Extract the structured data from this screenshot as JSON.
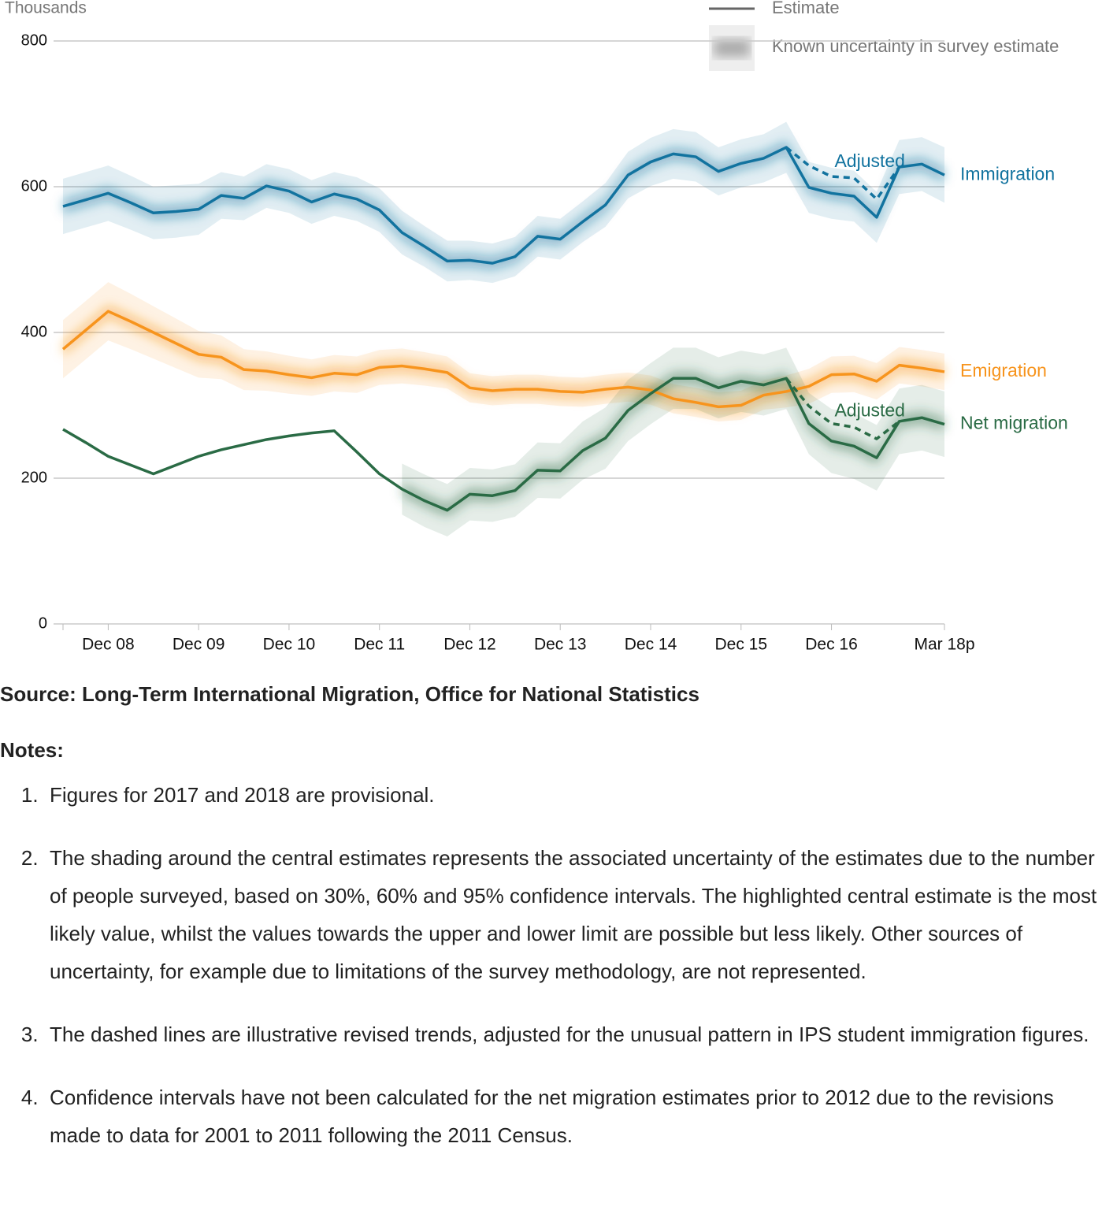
{
  "chart_data": {
    "type": "line",
    "y_label": "Thousands",
    "legend": {
      "line": "Estimate",
      "band": "Known uncertainty in survey estimate"
    },
    "categories": [
      null,
      null,
      "Dec 08",
      null,
      null,
      null,
      "Dec 09",
      null,
      null,
      null,
      "Dec 10",
      null,
      null,
      null,
      "Dec 11",
      null,
      null,
      null,
      "Dec 12",
      null,
      null,
      null,
      "Dec 13",
      null,
      null,
      null,
      "Dec 14",
      null,
      null,
      null,
      "Dec 15",
      null,
      null,
      null,
      "Dec 16",
      null,
      null,
      null,
      null,
      "Mar 18p"
    ],
    "ylim": [
      0,
      800
    ],
    "yticks": [
      0,
      200,
      400,
      600,
      800
    ],
    "grid": true,
    "series": [
      {
        "name": "Immigration",
        "color": "#12739f",
        "values": [
          573,
          582,
          591,
          578,
          564,
          566,
          569,
          588,
          584,
          601,
          594,
          579,
          590,
          583,
          568,
          537,
          518,
          498,
          499,
          495,
          504,
          532,
          528,
          552,
          575,
          616,
          634,
          645,
          641,
          621,
          632,
          639,
          654,
          599,
          591,
          587,
          558,
          627,
          631,
          616
        ],
        "uncertainty": [
          38,
          38,
          38,
          37,
          36,
          36,
          35,
          32,
          30,
          30,
          30,
          30,
          30,
          30,
          30,
          30,
          28,
          28,
          27,
          27,
          27,
          28,
          28,
          28,
          30,
          32,
          33,
          34,
          34,
          33,
          33,
          33,
          35,
          35,
          35,
          35,
          35,
          37,
          37,
          38
        ]
      },
      {
        "name": "Adjusted",
        "color": "#12739f",
        "dashed": true,
        "values": [
          null,
          null,
          null,
          null,
          null,
          null,
          null,
          null,
          null,
          null,
          null,
          null,
          null,
          null,
          null,
          null,
          null,
          null,
          null,
          null,
          null,
          null,
          null,
          null,
          null,
          null,
          null,
          null,
          null,
          null,
          null,
          null,
          654,
          629,
          614,
          612,
          583,
          627,
          null,
          null
        ]
      },
      {
        "name": "Emigration",
        "color": "#f7941d",
        "values": [
          377,
          403,
          429,
          415,
          400,
          385,
          370,
          366,
          349,
          347,
          342,
          338,
          344,
          342,
          352,
          354,
          350,
          345,
          324,
          320,
          322,
          322,
          319,
          318,
          322,
          325,
          321,
          309,
          304,
          298,
          300,
          314,
          319,
          326,
          342,
          343,
          333,
          355,
          351,
          346
        ],
        "uncertainty": [
          40,
          40,
          40,
          38,
          36,
          34,
          32,
          30,
          28,
          27,
          26,
          25,
          25,
          25,
          24,
          24,
          23,
          22,
          20,
          20,
          20,
          20,
          20,
          20,
          20,
          20,
          20,
          20,
          20,
          20,
          20,
          20,
          22,
          24,
          25,
          25,
          25,
          25,
          25,
          25
        ]
      },
      {
        "name": "Net migration",
        "color": "#2a6b45",
        "values": [
          267,
          249,
          230,
          218,
          206,
          218,
          230,
          239,
          246,
          253,
          258,
          262,
          265,
          236,
          206,
          185,
          169,
          156,
          178,
          176,
          183,
          211,
          210,
          238,
          255,
          293,
          316,
          337,
          337,
          324,
          333,
          328,
          337,
          275,
          251,
          244,
          228,
          278,
          283,
          274
        ],
        "uncertainty": [
          null,
          null,
          null,
          null,
          null,
          null,
          null,
          null,
          null,
          null,
          null,
          null,
          null,
          null,
          null,
          35,
          36,
          36,
          36,
          36,
          36,
          38,
          38,
          40,
          42,
          42,
          42,
          42,
          42,
          42,
          42,
          42,
          42,
          42,
          44,
          45,
          45,
          45,
          45,
          45
        ]
      },
      {
        "name": "Adjusted",
        "color": "#2a6b45",
        "dashed": true,
        "values": [
          null,
          null,
          null,
          null,
          null,
          null,
          null,
          null,
          null,
          null,
          null,
          null,
          null,
          null,
          null,
          null,
          null,
          null,
          null,
          null,
          null,
          null,
          null,
          null,
          null,
          null,
          null,
          null,
          null,
          null,
          null,
          null,
          337,
          299,
          275,
          270,
          254,
          278,
          null,
          null
        ]
      }
    ]
  },
  "source": "Source: Long-Term International Migration, Office for National Statistics",
  "notes": {
    "title": "Notes:",
    "items": [
      "Figures for 2017 and 2018 are provisional.",
      "The shading around the central estimates represents the associated uncertainty of the estimates due to the number of people surveyed, based on 30%, 60% and 95% confidence intervals. The highlighted central estimate is the most likely value, whilst the values towards the upper and lower limit are possible but less likely. Other sources of uncertainty, for example due to limitations of the survey methodology, are not represented.",
      "The dashed lines are illustrative revised trends, adjusted for the unusual pattern in IPS student immigration figures.",
      "Confidence intervals have not been calculated for the net migration estimates prior to 2012 due to the revisions made to data for 2001 to 2011 following the 2011 Census."
    ]
  }
}
